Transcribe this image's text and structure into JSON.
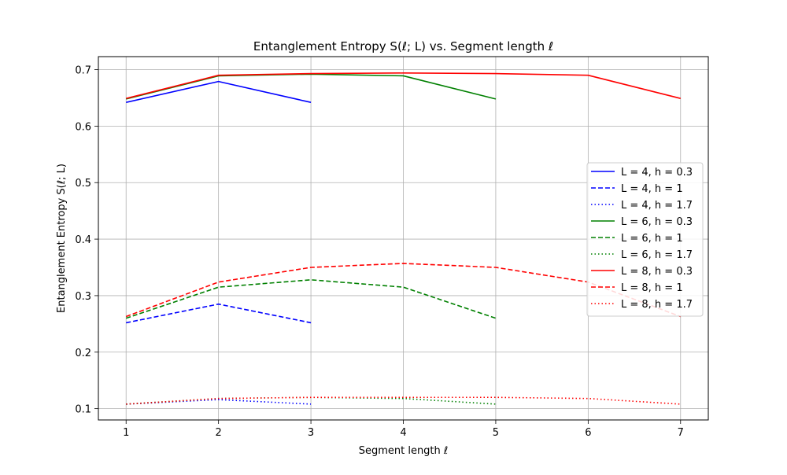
{
  "chart_data": {
    "type": "line",
    "title": "Entanglement Entropy S(ℓ; L) vs. Segment length ℓ",
    "xlabel": "Segment length ℓ",
    "ylabel": "Entanglement Entropy S(ℓ; L)",
    "xlim": [
      0.7,
      7.3
    ],
    "ylim": [
      0.08,
      0.723
    ],
    "x_ticks": [
      1,
      2,
      3,
      4,
      5,
      6,
      7
    ],
    "y_ticks": [
      0.1,
      0.2,
      0.3,
      0.4,
      0.5,
      0.6,
      0.7
    ],
    "x_tick_labels": [
      "1",
      "2",
      "3",
      "4",
      "5",
      "6",
      "7"
    ],
    "y_tick_labels": [
      "0.1",
      "0.2",
      "0.3",
      "0.4",
      "0.5",
      "0.6",
      "0.7"
    ],
    "grid": true,
    "legend_position": "center-right",
    "series": [
      {
        "name": "L = 4, h = 0.3",
        "color": "#0000ff",
        "style": "solid",
        "x": [
          1,
          2,
          3
        ],
        "y": [
          0.642,
          0.679,
          0.642
        ]
      },
      {
        "name": "L = 4, h = 1",
        "color": "#0000ff",
        "style": "dashed",
        "x": [
          1,
          2,
          3
        ],
        "y": [
          0.252,
          0.285,
          0.252
        ]
      },
      {
        "name": "L = 4, h = 1.7",
        "color": "#0000ff",
        "style": "dotted",
        "x": [
          1,
          2,
          3
        ],
        "y": [
          0.108,
          0.116,
          0.108
        ]
      },
      {
        "name": "L = 6, h = 0.3",
        "color": "#008000",
        "style": "solid",
        "x": [
          1,
          2,
          3,
          4,
          5
        ],
        "y": [
          0.648,
          0.689,
          0.692,
          0.689,
          0.648
        ]
      },
      {
        "name": "L = 6, h = 1",
        "color": "#008000",
        "style": "dashed",
        "x": [
          1,
          2,
          3,
          4,
          5
        ],
        "y": [
          0.26,
          0.315,
          0.328,
          0.315,
          0.26
        ]
      },
      {
        "name": "L = 6, h = 1.7",
        "color": "#008000",
        "style": "dotted",
        "x": [
          1,
          2,
          3,
          4,
          5
        ],
        "y": [
          0.108,
          0.118,
          0.12,
          0.118,
          0.108
        ]
      },
      {
        "name": "L = 8, h = 0.3",
        "color": "#ff0000",
        "style": "solid",
        "x": [
          1,
          2,
          3,
          4,
          5,
          6,
          7
        ],
        "y": [
          0.649,
          0.69,
          0.693,
          0.694,
          0.693,
          0.69,
          0.649
        ]
      },
      {
        "name": "L = 8, h = 1",
        "color": "#ff0000",
        "style": "dashed",
        "x": [
          1,
          2,
          3,
          4,
          5,
          6,
          7
        ],
        "y": [
          0.263,
          0.324,
          0.35,
          0.357,
          0.35,
          0.324,
          0.263
        ]
      },
      {
        "name": "L = 8, h = 1.7",
        "color": "#ff0000",
        "style": "dotted",
        "x": [
          1,
          2,
          3,
          4,
          5,
          6,
          7
        ],
        "y": [
          0.108,
          0.118,
          0.12,
          0.12,
          0.12,
          0.118,
          0.108
        ]
      }
    ]
  }
}
